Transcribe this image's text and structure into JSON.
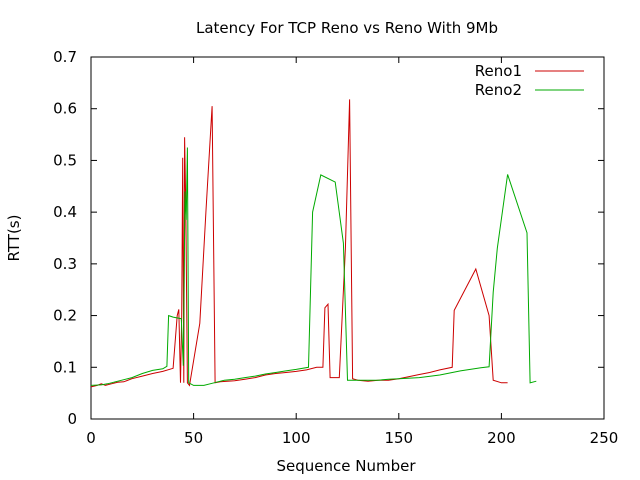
{
  "chart_data": {
    "type": "line",
    "title": "Latency For TCP Reno vs Reno With 9Mb",
    "xlabel": "Sequence Number",
    "ylabel": "RTT(s)",
    "xlim": [
      0,
      250
    ],
    "ylim": [
      0,
      0.7
    ],
    "xticks": [
      "0",
      "50",
      "100",
      "150",
      "200",
      "250"
    ],
    "yticks": [
      "0",
      "0.1",
      "0.2",
      "0.3",
      "0.4",
      "0.5",
      "0.6",
      "0.7"
    ],
    "grid": false,
    "legend_position": "top-right",
    "series": [
      {
        "name": "Reno1",
        "color": "#cc0000",
        "points": [
          [
            0,
            0.062
          ],
          [
            3,
            0.065
          ],
          [
            5,
            0.068
          ],
          [
            7,
            0.065
          ],
          [
            10,
            0.068
          ],
          [
            13,
            0.071
          ],
          [
            16,
            0.072
          ],
          [
            20,
            0.078
          ],
          [
            25,
            0.083
          ],
          [
            30,
            0.088
          ],
          [
            35,
            0.092
          ],
          [
            40,
            0.098
          ],
          [
            42,
            0.2
          ],
          [
            42.8,
            0.212
          ],
          [
            43.6,
            0.07
          ],
          [
            44.2,
            0.2
          ],
          [
            44.7,
            0.505
          ],
          [
            45.2,
            0.07
          ],
          [
            45.6,
            0.545
          ],
          [
            46.2,
            0.41
          ],
          [
            47,
            0.07
          ],
          [
            48,
            0.065
          ],
          [
            53,
            0.185
          ],
          [
            56,
            0.4
          ],
          [
            59,
            0.605
          ],
          [
            60.5,
            0.07
          ],
          [
            63,
            0.072
          ],
          [
            70,
            0.074
          ],
          [
            75,
            0.077
          ],
          [
            80,
            0.08
          ],
          [
            85,
            0.085
          ],
          [
            90,
            0.088
          ],
          [
            95,
            0.09
          ],
          [
            100,
            0.092
          ],
          [
            105,
            0.095
          ],
          [
            110,
            0.1
          ],
          [
            113,
            0.1
          ],
          [
            114,
            0.215
          ],
          [
            115.5,
            0.222
          ],
          [
            116.5,
            0.08
          ],
          [
            121,
            0.08
          ],
          [
            124,
            0.33
          ],
          [
            126,
            0.618
          ],
          [
            127.5,
            0.078
          ],
          [
            130,
            0.075
          ],
          [
            135,
            0.073
          ],
          [
            140,
            0.075
          ],
          [
            145,
            0.075
          ],
          [
            150,
            0.078
          ],
          [
            155,
            0.082
          ],
          [
            160,
            0.086
          ],
          [
            165,
            0.09
          ],
          [
            170,
            0.095
          ],
          [
            176,
            0.1
          ],
          [
            177,
            0.21
          ],
          [
            187.5,
            0.29
          ],
          [
            194,
            0.2
          ],
          [
            196,
            0.075
          ],
          [
            200,
            0.07
          ],
          [
            203,
            0.07
          ]
        ]
      },
      {
        "name": "Reno2",
        "color": "#00aa00",
        "points": [
          [
            0,
            0.065
          ],
          [
            5,
            0.066
          ],
          [
            8,
            0.068
          ],
          [
            10,
            0.07
          ],
          [
            15,
            0.075
          ],
          [
            20,
            0.08
          ],
          [
            25,
            0.088
          ],
          [
            30,
            0.094
          ],
          [
            35,
            0.097
          ],
          [
            37,
            0.102
          ],
          [
            37.8,
            0.2
          ],
          [
            40,
            0.197
          ],
          [
            44,
            0.194
          ],
          [
            45,
            0.103
          ],
          [
            45.8,
            0.44
          ],
          [
            46.4,
            0.385
          ],
          [
            47,
            0.525
          ],
          [
            47.6,
            0.07
          ],
          [
            50,
            0.065
          ],
          [
            55,
            0.065
          ],
          [
            60,
            0.07
          ],
          [
            65,
            0.075
          ],
          [
            70,
            0.077
          ],
          [
            75,
            0.08
          ],
          [
            80,
            0.083
          ],
          [
            85,
            0.087
          ],
          [
            90,
            0.09
          ],
          [
            95,
            0.093
          ],
          [
            100,
            0.096
          ],
          [
            106,
            0.1
          ],
          [
            108,
            0.4
          ],
          [
            112,
            0.472
          ],
          [
            119,
            0.458
          ],
          [
            123,
            0.34
          ],
          [
            125,
            0.075
          ],
          [
            130,
            0.075
          ],
          [
            135,
            0.075
          ],
          [
            140,
            0.075
          ],
          [
            145,
            0.077
          ],
          [
            150,
            0.078
          ],
          [
            160,
            0.08
          ],
          [
            170,
            0.085
          ],
          [
            180,
            0.093
          ],
          [
            190,
            0.099
          ],
          [
            194,
            0.101
          ],
          [
            196,
            0.245
          ],
          [
            198,
            0.33
          ],
          [
            203,
            0.473
          ],
          [
            212.5,
            0.36
          ],
          [
            214,
            0.07
          ],
          [
            217,
            0.073
          ]
        ]
      }
    ]
  }
}
